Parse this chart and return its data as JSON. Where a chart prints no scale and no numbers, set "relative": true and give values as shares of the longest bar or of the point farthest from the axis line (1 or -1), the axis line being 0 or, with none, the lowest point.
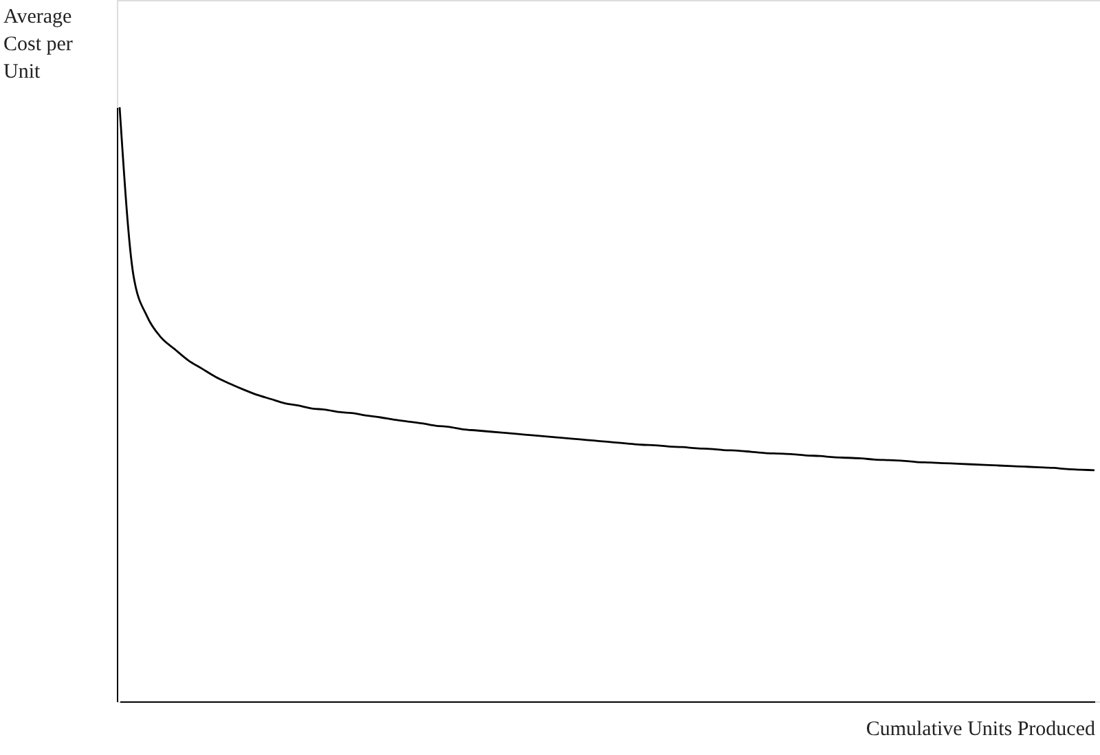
{
  "chart_data": {
    "type": "line",
    "xlabel": "Cumulative Units Produced",
    "ylabel": "Average Cost per Unit",
    "relative": true,
    "categories": [
      null,
      null,
      null,
      null,
      null,
      null,
      null,
      null,
      null,
      null,
      null,
      null,
      null,
      null,
      null,
      null,
      null,
      null,
      null,
      null,
      null,
      null,
      null,
      null,
      null,
      null,
      null,
      null,
      null,
      null,
      null,
      null,
      null,
      null,
      null,
      null,
      null,
      null,
      null,
      null,
      null,
      null,
      null,
      null,
      null,
      null,
      null,
      null,
      null,
      null,
      null,
      null,
      null,
      null,
      null,
      null,
      null,
      null,
      null,
      null,
      null,
      null,
      null,
      null,
      null,
      null,
      null,
      null,
      null,
      null,
      null,
      null
    ],
    "series": [
      {
        "color": "#000000",
        "values": [
          1.0,
          0.718,
          0.648,
          0.613,
          0.593,
          0.574,
          0.56,
          0.546,
          0.535,
          0.525,
          0.516,
          0.509,
          0.502,
          0.498,
          0.493,
          0.491,
          0.487,
          0.485,
          0.481,
          0.478,
          0.474,
          0.471,
          0.468,
          0.464,
          0.462,
          0.458,
          0.456,
          0.454,
          0.452,
          0.45,
          0.448,
          0.446,
          0.444,
          0.442,
          0.44,
          0.438,
          0.436,
          0.434,
          0.432,
          0.431,
          0.429,
          0.428,
          0.426,
          0.425,
          0.423,
          0.422,
          0.42,
          0.418,
          0.417,
          0.416,
          0.414,
          0.413,
          0.411,
          0.41,
          0.409,
          0.407,
          0.406,
          0.405,
          0.403,
          0.402,
          0.401,
          0.4,
          0.399,
          0.398,
          0.397,
          0.396,
          0.395,
          0.394,
          0.393,
          0.391,
          0.39,
          0.389
        ]
      }
    ]
  }
}
